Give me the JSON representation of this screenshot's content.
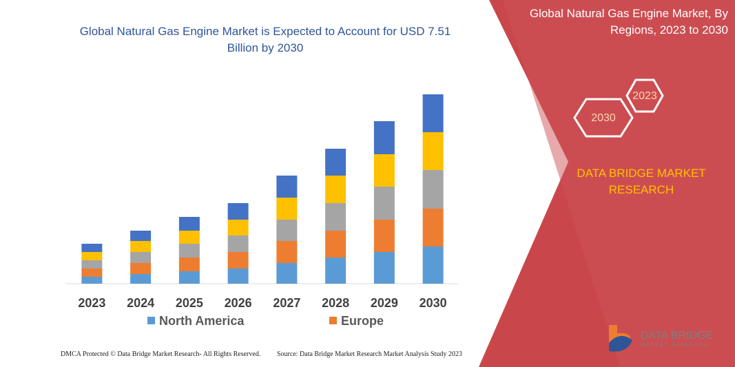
{
  "chart_data": {
    "type": "stacked-bar",
    "title": "Global Natural Gas Engine Market is Expected to Account for USD 7.51 Billion by 2030",
    "categories": [
      "2023",
      "2024",
      "2025",
      "2026",
      "2027",
      "2028",
      "2029",
      "2030"
    ],
    "series": [
      {
        "name": "North America",
        "color": "#5b9bd5",
        "values": [
          10,
          14,
          18,
          22,
          30,
          38,
          46,
          54
        ]
      },
      {
        "name": "Europe",
        "color": "#ed7d31",
        "values": [
          12,
          16,
          20,
          24,
          32,
          39,
          47,
          55
        ]
      },
      {
        "color": "#a5a5a5",
        "values": [
          12,
          16,
          20,
          24,
          31,
          40,
          48,
          56
        ]
      },
      {
        "color": "#ffc000",
        "values": [
          12,
          16,
          19,
          23,
          32,
          40,
          47,
          55
        ]
      },
      {
        "color": "#4472c4",
        "values": [
          12,
          15,
          20,
          24,
          32,
          39,
          48,
          55
        ]
      }
    ],
    "ylim": [
      0,
      300
    ]
  },
  "panel": {
    "title": "Global Natural Gas Engine Market, By Regions, 2023 to 2030",
    "hex_top": "2023",
    "hex_bottom": "2030",
    "brand": "DATA BRIDGE MARKET RESEARCH"
  },
  "logo": {
    "name": "DATA BRIDGE",
    "tagline": "MARKET RESEARCH"
  },
  "footer": {
    "left": "DMCA Protected © Data Bridge Market Research- All Rights Reserved.",
    "right": "Source: Data Bridge Market Research  Market Analysis Study 2023"
  }
}
